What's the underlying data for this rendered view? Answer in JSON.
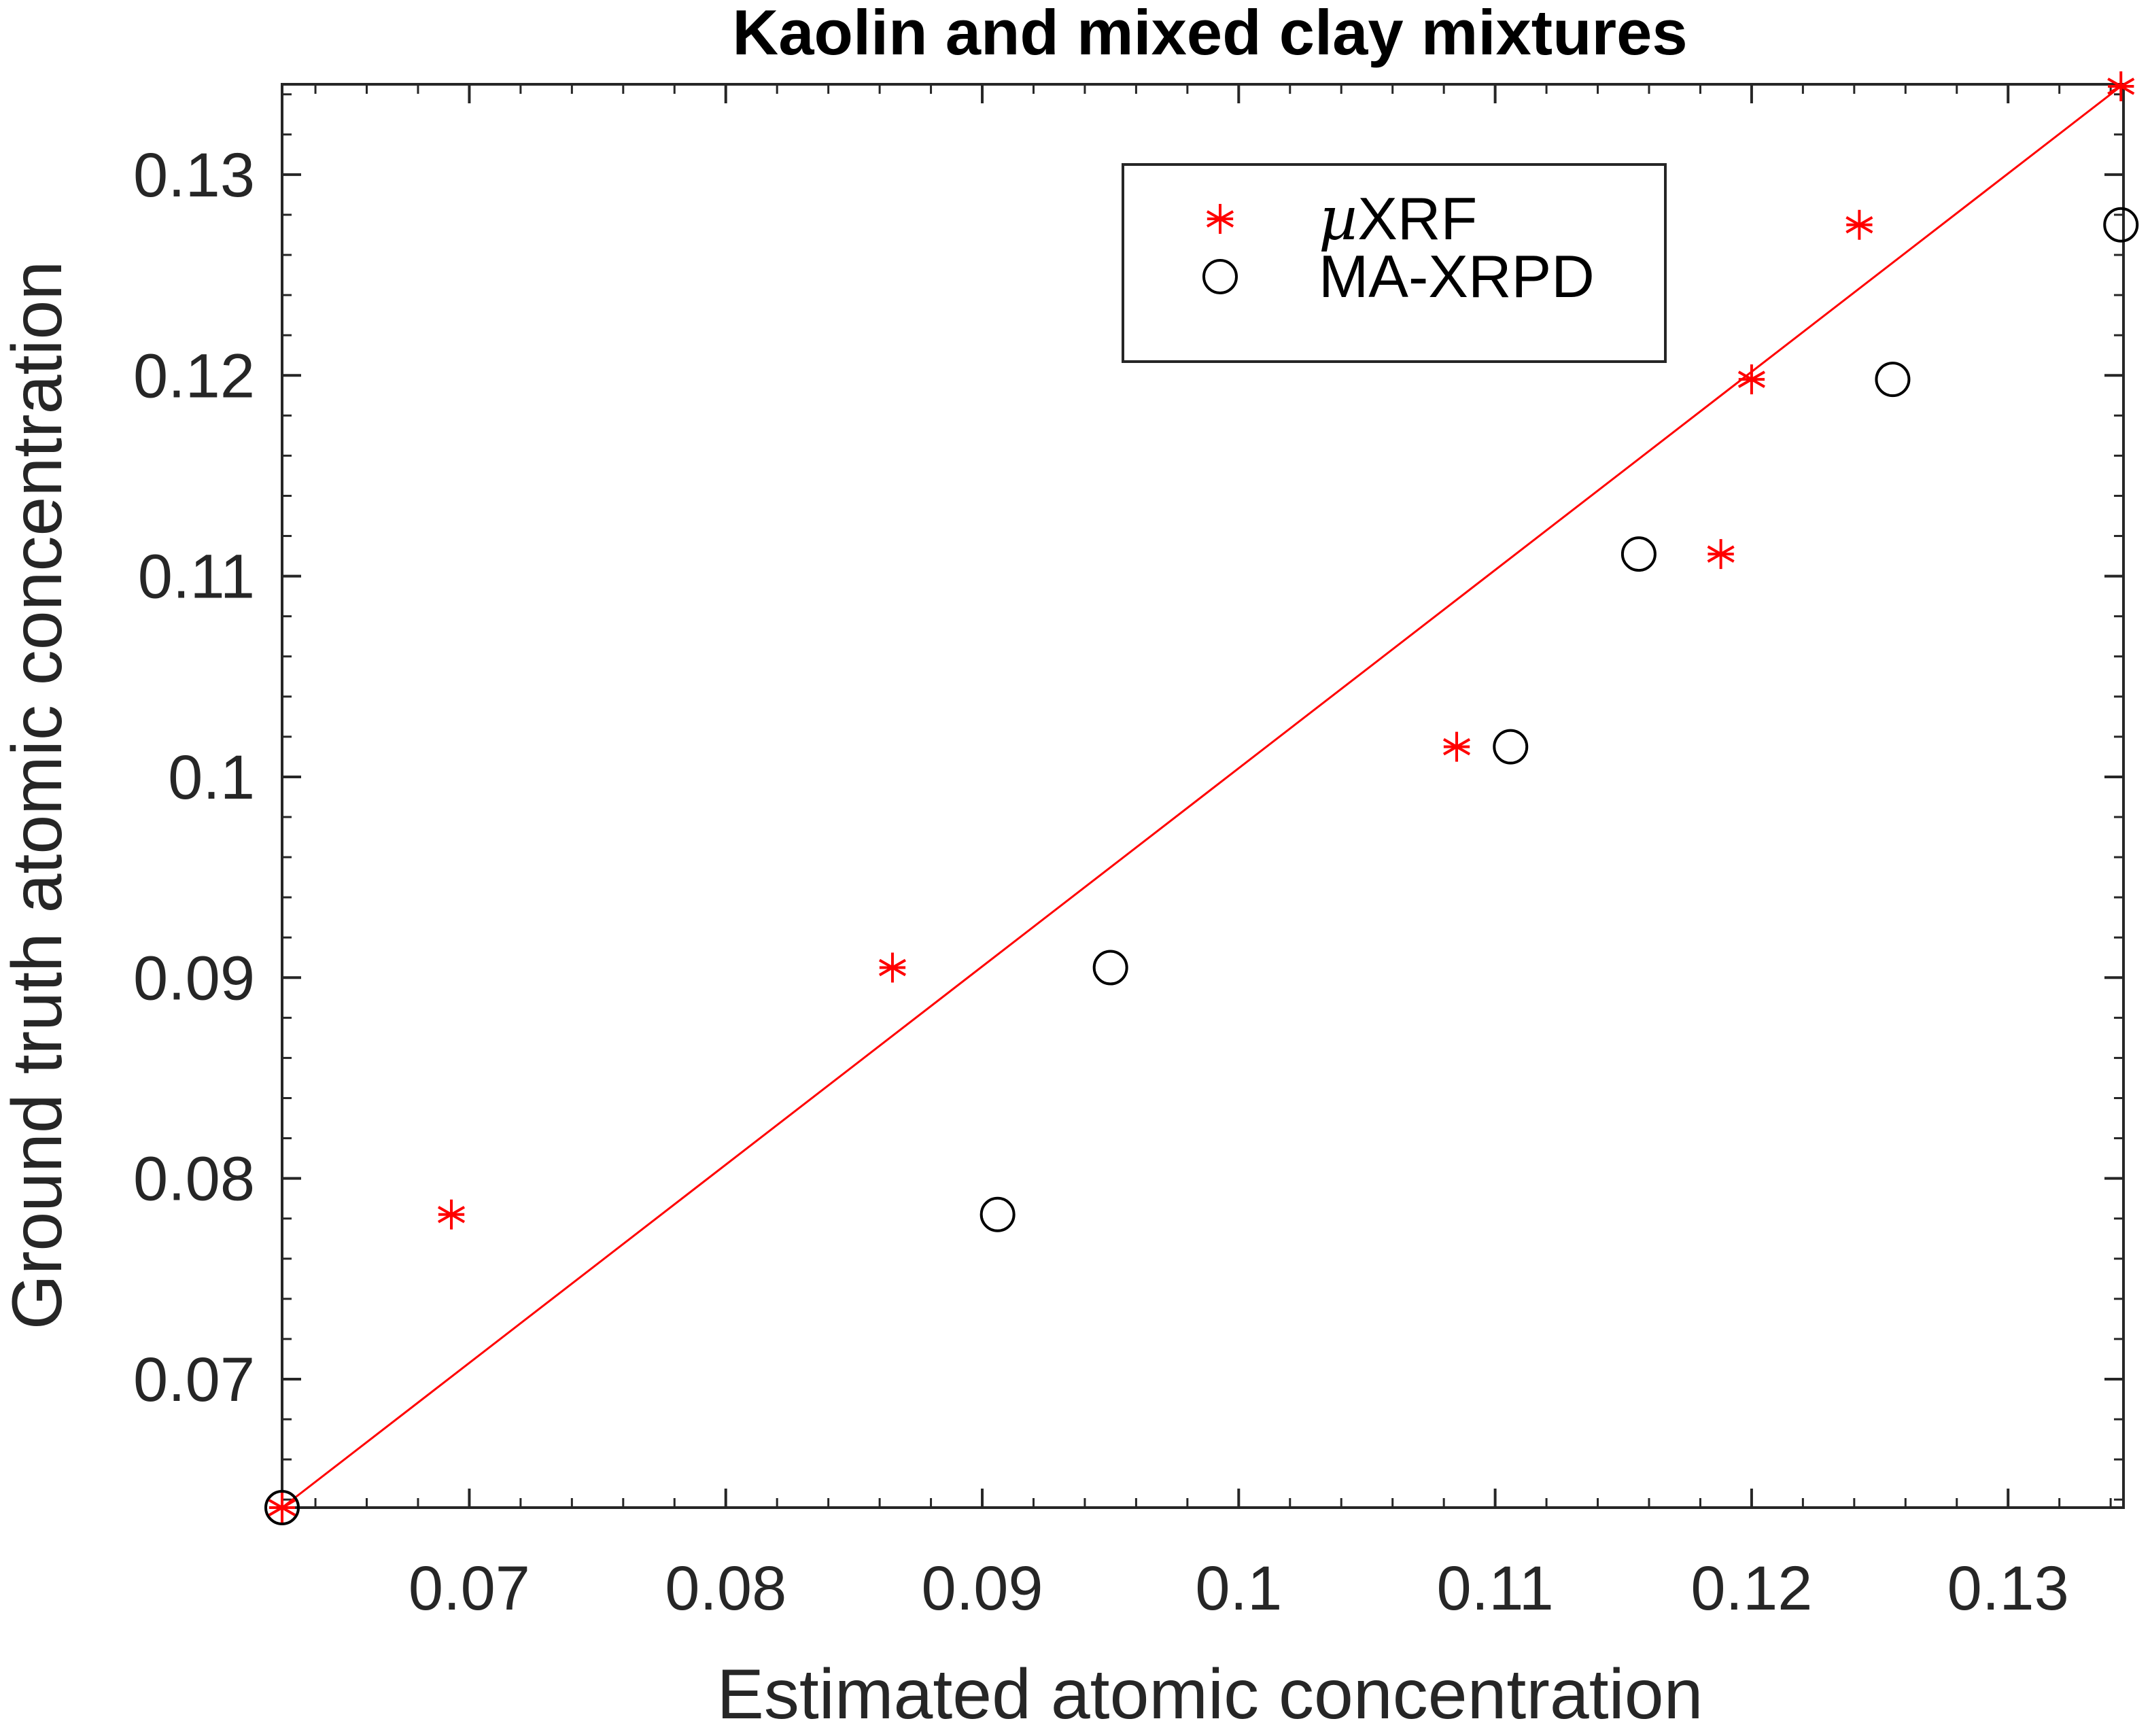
{
  "chart_data": {
    "type": "scatter",
    "title": "Kaolin and mixed clay mixtures",
    "xlabel": "Estimated atomic concentration",
    "ylabel": "Ground truth atomic concentration",
    "xlim": [
      0.0627,
      0.1345
    ],
    "ylim": [
      0.0636,
      0.1345
    ],
    "xticks": [
      0.07,
      0.08,
      0.09,
      0.1,
      0.11,
      0.12,
      0.13
    ],
    "yticks": [
      0.07,
      0.08,
      0.09,
      0.1,
      0.11,
      0.12,
      0.13
    ],
    "xtick_labels": [
      "0.07",
      "0.08",
      "0.09",
      "0.1",
      "0.11",
      "0.12",
      "0.13"
    ],
    "ytick_labels": [
      "0.07",
      "0.08",
      "0.09",
      "0.1",
      "0.11",
      "0.12",
      "0.13"
    ],
    "grid": false,
    "legend_position": "top-right",
    "series": [
      {
        "name": "µXRF",
        "name_prefix": "µ",
        "name_suffix": "XRF",
        "marker": "asterisk",
        "color": "#ff0000",
        "x": [
          0.0627,
          0.0693,
          0.0865,
          0.1085,
          0.1188,
          0.12,
          0.1242,
          0.1344
        ],
        "y": [
          0.0636,
          0.0782,
          0.0905,
          0.1015,
          0.1111,
          0.1198,
          0.1275,
          0.1344
        ]
      },
      {
        "name": "MA-XRPD",
        "marker": "circle",
        "color": "#000000",
        "x": [
          0.0627,
          0.0906,
          0.095,
          0.1106,
          0.1156,
          0.1255,
          0.1344
        ],
        "y": [
          0.0636,
          0.0782,
          0.0905,
          0.1015,
          0.1111,
          0.1198,
          0.1275
        ]
      }
    ],
    "reference_line": {
      "type": "identity",
      "color": "#ff0000",
      "x": [
        0.0627,
        0.1344
      ],
      "y": [
        0.0636,
        0.1344
      ]
    }
  }
}
